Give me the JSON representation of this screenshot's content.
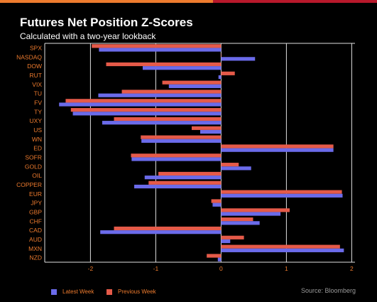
{
  "header": {
    "title": "Futures Net Position Z-Scores",
    "subtitle": "Calculated with a two-year lookback"
  },
  "source": "Source: Bloomberg",
  "colors": {
    "latest": "#6b6bea",
    "previous": "#e55a49",
    "label": "#ee7b2e",
    "grid": "#e0e0e0"
  },
  "chart_data": {
    "type": "bar",
    "orientation": "horizontal",
    "title": "Futures Net Position Z-Scores",
    "subtitle": "Calculated with a two-year lookback",
    "xlim": [
      -2.7,
      2.05
    ],
    "xticks": [
      -2,
      -1,
      0,
      1,
      2
    ],
    "grid": true,
    "legend_position": "bottom-left",
    "categories": [
      "SPX",
      "NASDAQ",
      "DOW",
      "RUT",
      "VIX",
      "TU",
      "FV",
      "TY",
      "UXY",
      "US",
      "WN",
      "ED",
      "SOFR",
      "GOLD",
      "OIL",
      "COPPER",
      "EUR",
      "JPY",
      "GBP",
      "CHF",
      "CAD",
      "AUD",
      "MXN",
      "NZD"
    ],
    "series": [
      {
        "name": "Latest Week",
        "values": [
          -1.87,
          0.52,
          -1.2,
          -0.04,
          -0.8,
          -1.88,
          -2.48,
          -2.27,
          -1.82,
          -0.32,
          -1.22,
          1.72,
          -1.37,
          0.46,
          -1.17,
          -1.33,
          1.86,
          -0.13,
          0.91,
          0.59,
          -1.85,
          0.14,
          1.88,
          -0.05
        ]
      },
      {
        "name": "Previous Week",
        "values": [
          -1.98,
          0.0,
          -1.76,
          0.21,
          -0.9,
          -1.52,
          -2.38,
          -2.3,
          -1.64,
          -0.45,
          -1.23,
          1.72,
          -1.38,
          0.27,
          -0.96,
          -1.11,
          1.85,
          -0.15,
          1.05,
          0.49,
          -1.64,
          0.35,
          1.82,
          -0.22
        ]
      }
    ]
  }
}
